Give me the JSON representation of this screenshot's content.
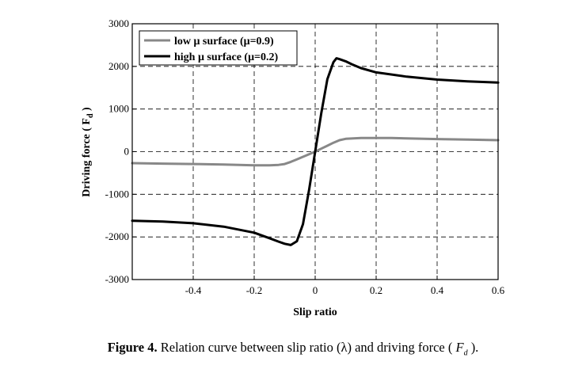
{
  "chart_data": {
    "type": "line",
    "title": "",
    "xlabel": "Slip ratio",
    "ylabel": "Driving force ( F",
    "ylabel_sub": "d",
    "ylabel_close": " )",
    "xlim": [
      -0.6,
      0.6
    ],
    "ylim": [
      -3000,
      3000
    ],
    "xticks": [
      -0.4,
      -0.2,
      0,
      0.2,
      0.4,
      0.6
    ],
    "xtick_labels": [
      "-0.4",
      "-0.2",
      "0",
      "0.2",
      "0.4",
      "0.6"
    ],
    "yticks": [
      -3000,
      -2000,
      -1000,
      0,
      1000,
      2000,
      3000
    ],
    "ytick_labels": [
      "-3000",
      "-2000",
      "-1000",
      "0",
      "1000",
      "2000",
      "3000"
    ],
    "grid": true,
    "grid_style": "dashed",
    "legend_position": "top-left",
    "series": [
      {
        "name": "low μ surface (μ=0.9)",
        "color": "#888888",
        "x": [
          -0.6,
          -0.5,
          -0.4,
          -0.3,
          -0.2,
          -0.15,
          -0.12,
          -0.1,
          -0.08,
          -0.06,
          -0.04,
          -0.02,
          0,
          0.02,
          0.04,
          0.06,
          0.08,
          0.1,
          0.15,
          0.2,
          0.25,
          0.3,
          0.4,
          0.5,
          0.6
        ],
        "y": [
          -270,
          -280,
          -290,
          -300,
          -320,
          -320,
          -310,
          -290,
          -240,
          -180,
          -120,
          -60,
          0,
          70,
          140,
          210,
          270,
          300,
          320,
          320,
          320,
          310,
          295,
          285,
          270
        ]
      },
      {
        "name": "high μ surface (μ=0.2)",
        "color": "#000000",
        "x": [
          -0.6,
          -0.5,
          -0.4,
          -0.3,
          -0.2,
          -0.15,
          -0.12,
          -0.1,
          -0.08,
          -0.06,
          -0.04,
          -0.02,
          0,
          0.02,
          0.04,
          0.06,
          0.07,
          0.08,
          0.1,
          0.12,
          0.15,
          0.2,
          0.3,
          0.4,
          0.5,
          0.6
        ],
        "y": [
          -1620,
          -1640,
          -1680,
          -1760,
          -1900,
          -2030,
          -2110,
          -2160,
          -2190,
          -2100,
          -1700,
          -900,
          0,
          900,
          1700,
          2100,
          2190,
          2170,
          2120,
          2050,
          1960,
          1860,
          1760,
          1690,
          1650,
          1620
        ]
      }
    ]
  },
  "caption": {
    "figure_number": "Figure 4.",
    "text": " Relation curve between slip ratio (λ) and driving force (",
    "symbol": "F",
    "symbol_sub": "d",
    "text_end": " )."
  }
}
